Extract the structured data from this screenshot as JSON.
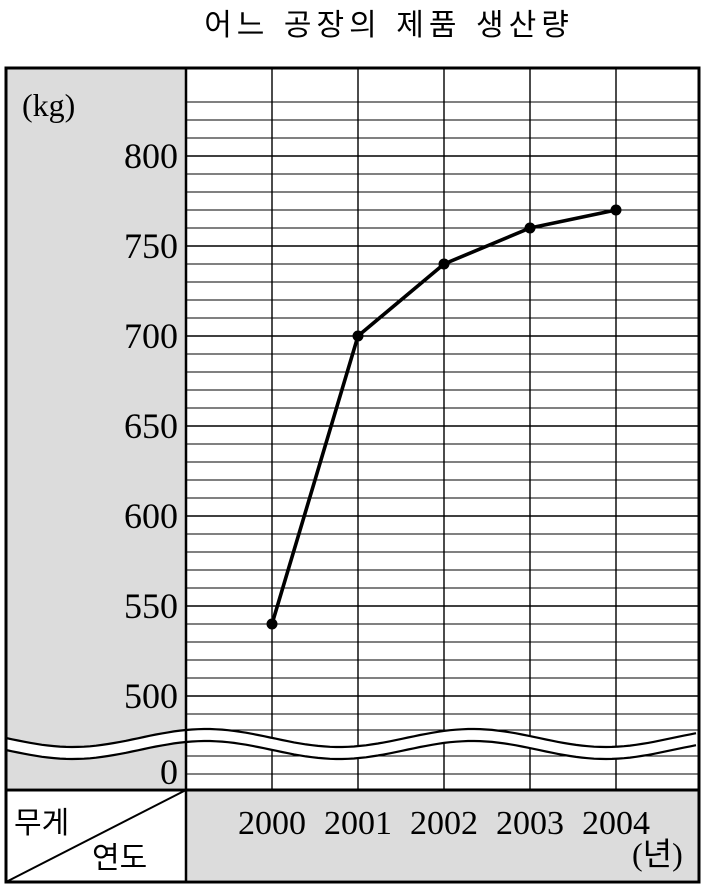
{
  "chart_data": {
    "type": "line",
    "title": "어느 공장의 제품 생산량",
    "y_unit": "(kg)",
    "x_unit": "(년)",
    "row_header_top": "무게",
    "row_header_bottom": "연도",
    "categories": [
      "2000",
      "2001",
      "2002",
      "2003",
      "2004"
    ],
    "values": [
      540,
      700,
      740,
      760,
      770
    ],
    "y_ticks": [
      "800",
      "750",
      "700",
      "650",
      "600",
      "550",
      "500",
      "0"
    ],
    "ylim": [
      500,
      830
    ],
    "y_axis_broken": true,
    "grid": true,
    "grid_minor_step": 10
  },
  "colors": {
    "panel": "#dcdcdc",
    "line": "#000000",
    "grid": "#000000"
  }
}
